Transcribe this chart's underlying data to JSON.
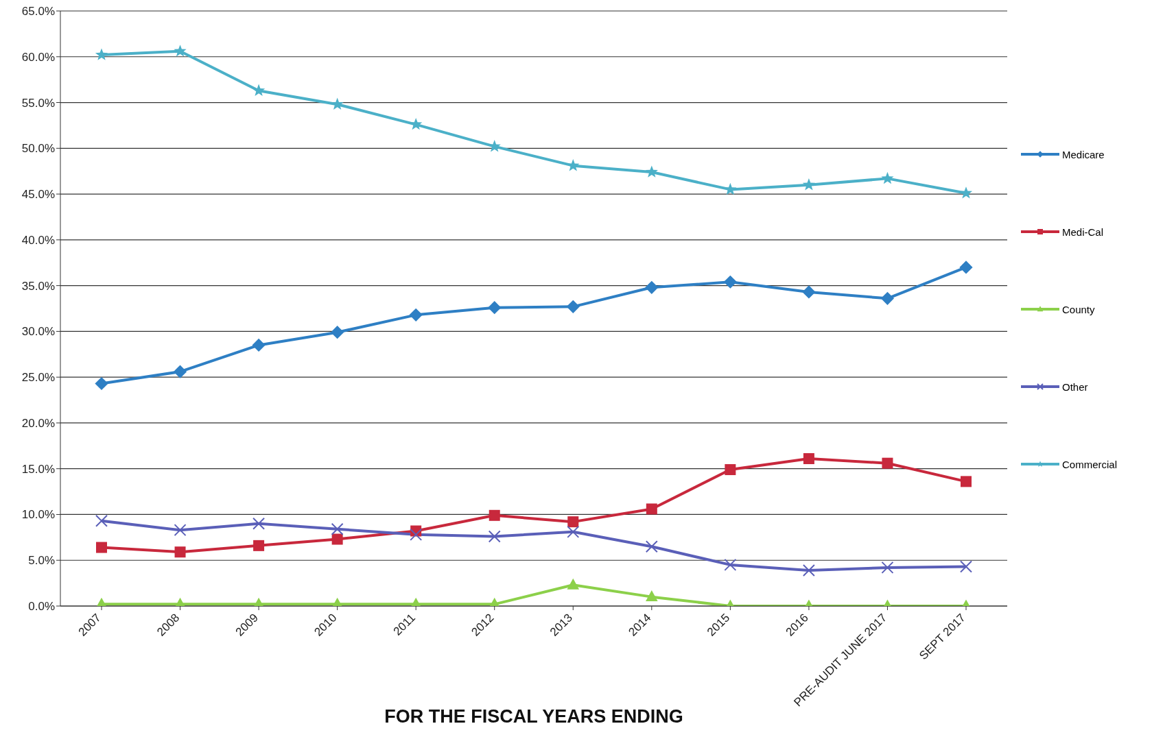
{
  "chart_data": {
    "type": "line",
    "xlabel": "FOR THE FISCAL YEARS ENDING",
    "categories": [
      "2007",
      "2008",
      "2009",
      "2010",
      "2011",
      "2012",
      "2013",
      "2014",
      "2015",
      "2016",
      "PRE-AUDIT JUNE 2017",
      "SEPT 2017"
    ],
    "ylim": [
      0,
      65
    ],
    "yticks": [
      {
        "value": 0,
        "label": "0.0%"
      },
      {
        "value": 5,
        "label": "5.0%"
      },
      {
        "value": 10,
        "label": "10.0%"
      },
      {
        "value": 15,
        "label": "15.0%"
      },
      {
        "value": 20,
        "label": "20.0%"
      },
      {
        "value": 25,
        "label": "25.0%"
      },
      {
        "value": 30,
        "label": "30.0%"
      },
      {
        "value": 35,
        "label": "35.0%"
      },
      {
        "value": 40,
        "label": "40.0%"
      },
      {
        "value": 45,
        "label": "45.0%"
      },
      {
        "value": 50,
        "label": "50.0%"
      },
      {
        "value": 55,
        "label": "55.0%"
      },
      {
        "value": 60,
        "label": "60.0%"
      },
      {
        "value": 65,
        "label": "65.0%"
      }
    ],
    "grid": "y",
    "legend": "right",
    "line_style": "solid",
    "series": [
      {
        "name": "Medicare",
        "color": "#2e7fc4",
        "marker": "diamond",
        "values": [
          24.3,
          25.6,
          28.5,
          29.9,
          31.8,
          32.6,
          32.7,
          34.8,
          35.4,
          34.3,
          33.6,
          37.0
        ]
      },
      {
        "name": "Medi-Cal",
        "color": "#c8283c",
        "marker": "square",
        "values": [
          6.4,
          5.9,
          6.6,
          7.3,
          8.2,
          9.9,
          9.2,
          10.6,
          14.9,
          16.1,
          15.6,
          13.6
        ]
      },
      {
        "name": "County",
        "color": "#8cd04a",
        "marker": "triangle",
        "values": [
          0.2,
          0.2,
          0.2,
          0.2,
          0.2,
          0.2,
          2.3,
          1.0,
          0,
          0,
          0,
          0
        ]
      },
      {
        "name": "Other",
        "color": "#5a5fb8",
        "marker": "cross",
        "values": [
          9.3,
          8.3,
          9.0,
          8.4,
          7.8,
          7.6,
          8.1,
          6.5,
          4.5,
          3.9,
          4.2,
          4.3
        ]
      },
      {
        "name": "Commercial",
        "color": "#4bb0c8",
        "marker": "star",
        "values": [
          60.2,
          60.6,
          56.3,
          54.8,
          52.6,
          50.2,
          48.1,
          47.4,
          45.5,
          46.0,
          46.7,
          45.1
        ]
      }
    ]
  }
}
